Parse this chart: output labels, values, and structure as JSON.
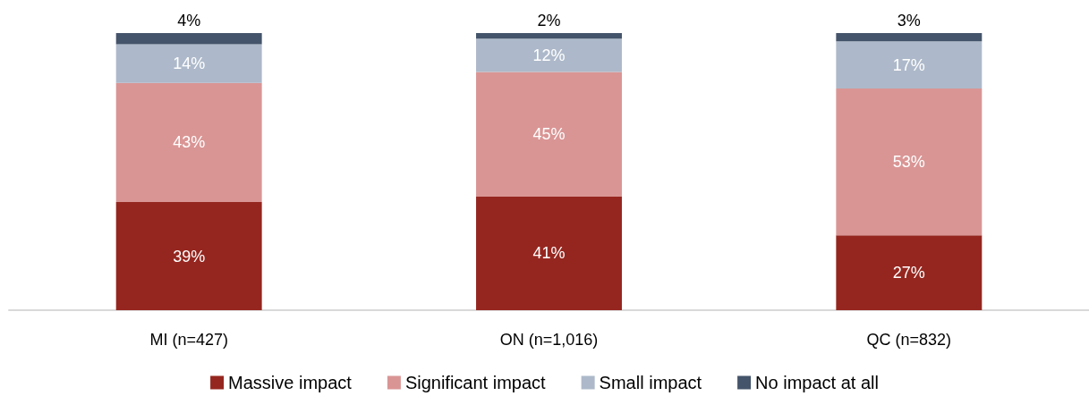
{
  "chart_data": {
    "type": "bar",
    "stacked": true,
    "categories": [
      "MI (n=427)",
      "ON (n=1,016)",
      "QC (n=832)"
    ],
    "series": [
      {
        "name": "Massive impact",
        "color": "#95261f",
        "values": [
          39,
          41,
          27
        ],
        "value_labels": [
          "39%",
          "41%",
          "27%"
        ]
      },
      {
        "name": "Significant impact",
        "color": "#d99594",
        "values": [
          43,
          45,
          53
        ],
        "value_labels": [
          "43%",
          "45%",
          "53%"
        ]
      },
      {
        "name": "Small impact",
        "color": "#adb9ca",
        "values": [
          14,
          12,
          17
        ],
        "value_labels": [
          "14%",
          "12%",
          "17%"
        ]
      },
      {
        "name": "No impact at all",
        "color": "#44546a",
        "values": [
          4,
          2,
          3
        ],
        "value_labels": [
          "4%",
          "2%",
          "3%"
        ]
      }
    ],
    "legend": "bottom",
    "grid": false,
    "tick_labels": "x"
  }
}
